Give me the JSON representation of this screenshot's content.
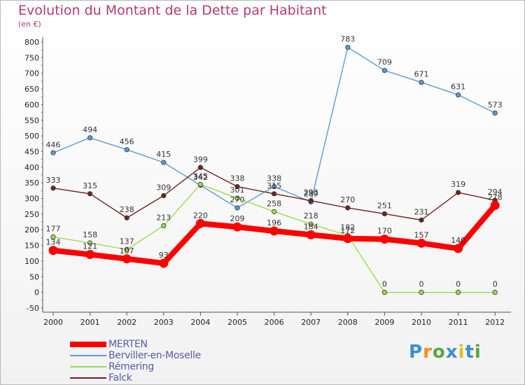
{
  "title": "Evolution du Montant de la Dette par Habitant",
  "unit_label": "(en €)",
  "logo_text": "Proxiti",
  "logo_colors": [
    "#3a8fd6",
    "#f28c1a",
    "#5aa63c",
    "#3a8fd6",
    "#e0c21a",
    "#3a8fd6",
    "#5aa63c"
  ],
  "chart_data": {
    "type": "line",
    "title": "Evolution du Montant de la Dette par Habitant",
    "ylabel": "(en €)",
    "xlabel": "",
    "x": [
      "2000",
      "2001",
      "2002",
      "2003",
      "2004",
      "2005",
      "2006",
      "2007",
      "2008",
      "2009",
      "2010",
      "2011",
      "2012"
    ],
    "y_ticks": [
      "800",
      "750",
      "700",
      "650",
      "600",
      "550",
      "500",
      "450",
      "400",
      "350",
      "300",
      "250",
      "200",
      "150",
      "100",
      "50",
      "0",
      "-50"
    ],
    "ylim": [
      -50,
      800
    ],
    "grid": false,
    "legend_position": "bottom-left",
    "series": [
      {
        "name": "MERTEN",
        "color": "#ff0000",
        "thick": true,
        "values": [
          134,
          121,
          107,
          93,
          220,
          209,
          196,
          184,
          172,
          170,
          157,
          140,
          278
        ],
        "labels": [
          "134",
          "121",
          "107",
          "93",
          "220",
          "209",
          "196",
          "184",
          "172",
          "170",
          "157",
          "140",
          "278"
        ]
      },
      {
        "name": "Berviller-en-Moselle",
        "color": "#5b9bd5",
        "thick": false,
        "values": [
          446,
          494,
          456,
          415,
          342,
          270,
          338,
          289,
          783,
          709,
          671,
          631,
          573
        ],
        "labels": [
          "446",
          "494",
          "456",
          "415",
          "342",
          "270",
          "338",
          "289",
          "783",
          "709",
          "671",
          "631",
          "573"
        ]
      },
      {
        "name": "Rémering",
        "color": "#99dd55",
        "thick": false,
        "values": [
          177,
          158,
          137,
          213,
          345,
          301,
          258,
          218,
          182,
          0,
          0,
          0,
          0
        ],
        "labels": [
          "177",
          "158",
          "137",
          "213",
          "345",
          "301",
          "258",
          "218",
          "182",
          "0",
          "0",
          "0",
          "0"
        ]
      },
      {
        "name": "Falck",
        "color": "#722222",
        "thick": false,
        "values": [
          333,
          315,
          238,
          309,
          399,
          338,
          315,
          293,
          270,
          251,
          231,
          319,
          294
        ],
        "labels": [
          "333",
          "315",
          "238",
          "309",
          "399",
          "338",
          "315",
          "293",
          "270",
          "251",
          "231",
          "319",
          "294"
        ]
      }
    ]
  }
}
